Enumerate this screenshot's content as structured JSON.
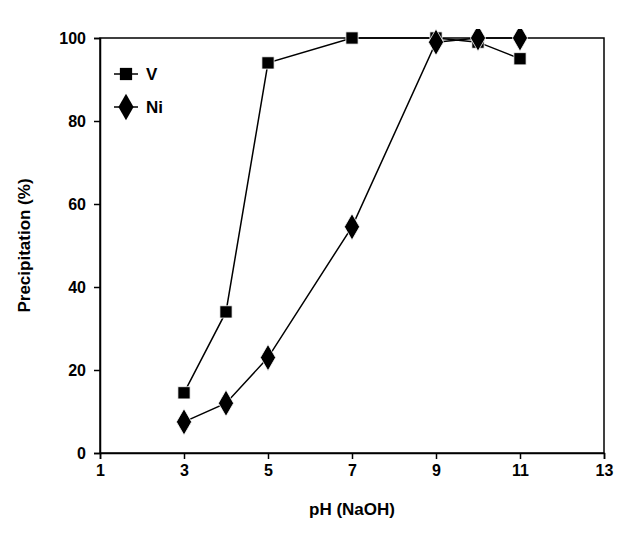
{
  "chart_data": {
    "type": "line",
    "x_label": "pH (NaOH)",
    "y_label": "Precipitation (%)",
    "x": [
      3,
      4,
      5,
      7,
      9,
      10,
      11
    ],
    "series": [
      {
        "name": "V",
        "color": "#000000",
        "marker": "square",
        "values": [
          14.5,
          34,
          94,
          100,
          100,
          99,
          95
        ]
      },
      {
        "name": "Ni",
        "color": "#000000",
        "marker": "diamond",
        "values": [
          7.5,
          12,
          23,
          54.5,
          99,
          100,
          100
        ]
      }
    ],
    "xlim": [
      1,
      13
    ],
    "xticks": [
      1,
      3,
      5,
      7,
      9,
      11,
      13
    ],
    "ylim": [
      0,
      100
    ],
    "yticks": [
      0,
      20,
      40,
      60,
      80,
      100
    ],
    "legend": "upper left",
    "grid": false
  }
}
